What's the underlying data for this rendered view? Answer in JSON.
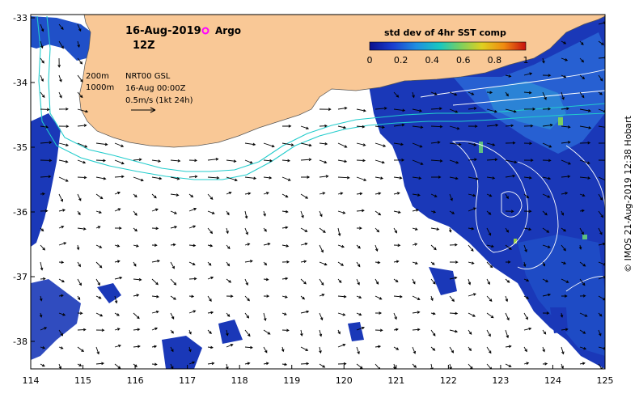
{
  "title": {
    "date": "16-Aug-2019",
    "time": "12Z",
    "argo_label": "Argo"
  },
  "legend": {
    "isobath_200": "200m",
    "isobath_1000": "1000m",
    "product": "NRT00 GSL",
    "product_time": "16-Aug 00:00Z",
    "vector_scale": "0.5m/s (1kt 24h)"
  },
  "colorbar": {
    "title": "std dev of 4hr SST comp",
    "ticks": [
      "0",
      "0.2",
      "0.4",
      "0.6",
      "0.8",
      "1"
    ],
    "colors": [
      "#0b0f8c",
      "#1a3fd0",
      "#1f8fe0",
      "#18c8c0",
      "#7ad060",
      "#e0d020",
      "#f08a10",
      "#c81010"
    ]
  },
  "axes": {
    "x_ticks": [
      "114",
      "115",
      "116",
      "117",
      "118",
      "119",
      "120",
      "121",
      "122",
      "123",
      "124",
      "125"
    ],
    "y_ticks": [
      "-33",
      "-34",
      "-35",
      "-36",
      "-37",
      "-38"
    ]
  },
  "copyright": "© IMOS 21-Aug-2019 12:38 Hobart",
  "colors": {
    "land": "#f9c896",
    "ocean": "#ffffff",
    "isobath": "#22cccc",
    "sst_low": "#1530a8",
    "sst_mid": "#2a68d8",
    "contour": "#ffffff",
    "argo": "#ff00ff"
  }
}
